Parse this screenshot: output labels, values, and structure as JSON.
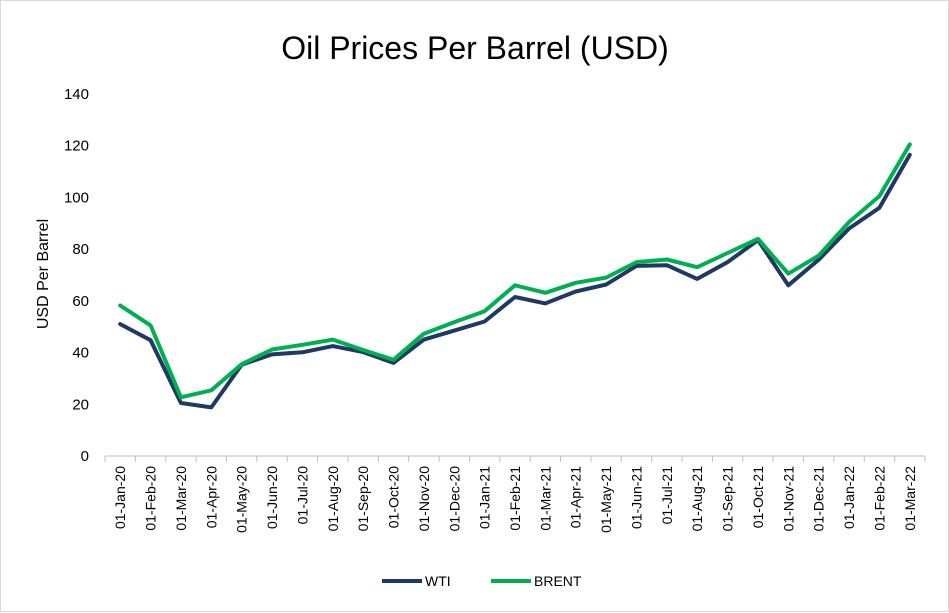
{
  "chart_data": {
    "type": "line",
    "title": "Oil Prices Per Barrel (USD)",
    "xlabel": "",
    "ylabel": "USD Per Barrel",
    "ylim": [
      0,
      140
    ],
    "yticks": [
      0,
      20,
      40,
      60,
      80,
      100,
      120,
      140
    ],
    "grid": false,
    "legend": "bottom",
    "categories": [
      "01-Jan-20",
      "01-Feb-20",
      "01-Mar-20",
      "01-Apr-20",
      "01-May-20",
      "01-Jun-20",
      "01-Jul-20",
      "01-Aug-20",
      "01-Sep-20",
      "01-Oct-20",
      "01-Nov-20",
      "01-Dec-20",
      "01-Jan-21",
      "01-Feb-21",
      "01-Mar-21",
      "01-Apr-21",
      "01-May-21",
      "01-Jun-21",
      "01-Jul-21",
      "01-Aug-21",
      "01-Sep-21",
      "01-Oct-21",
      "01-Nov-21",
      "01-Dec-21",
      "01-Jan-22",
      "01-Feb-22",
      "01-Mar-22"
    ],
    "series": [
      {
        "name": "WTI",
        "color": "#1f3864",
        "values": [
          51,
          44.8,
          20.5,
          18.8,
          35.3,
          39.3,
          40.1,
          42.5,
          40.2,
          36,
          45,
          48.5,
          52,
          61.5,
          59,
          63.6,
          66.3,
          73.5,
          73.8,
          68.5,
          75,
          83.5,
          66,
          75.9,
          88,
          96,
          116.5
        ]
      },
      {
        "name": "BRENT",
        "color": "#00b050",
        "values": [
          58.2,
          50.5,
          22.7,
          25.4,
          35.5,
          41.2,
          43,
          45,
          41,
          37.2,
          47.3,
          51.8,
          56,
          66,
          63.1,
          67,
          69,
          75,
          76,
          73,
          78.5,
          84,
          70.5,
          77.5,
          90.5,
          100.5,
          120.5
        ]
      }
    ]
  }
}
